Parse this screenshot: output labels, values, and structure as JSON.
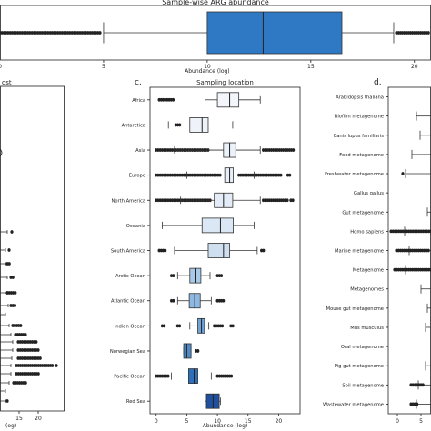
{
  "chart_data": [
    {
      "panel": "a",
      "type": "box",
      "title": "Sample-wise ARG abundance",
      "xlabel": "Abundance (log)",
      "ticks": [
        0,
        5,
        10,
        15,
        20
      ],
      "xlim": [
        0,
        20.8
      ],
      "box": {
        "whislo": 5,
        "q1": 10,
        "med": 12.7,
        "q3": 16.5,
        "whishi": 19
      }
    },
    {
      "panel": "b",
      "type": "box",
      "title": "ost",
      "ticks": [
        15,
        20
      ],
      "tick_labels": [
        "15",
        "20"
      ],
      "xlabel": "(og)"
    },
    {
      "panel": "c",
      "type": "box",
      "title": "Sampling location",
      "letter": "c.",
      "xlabel": "Abundance (log)",
      "ticks": [
        0,
        5,
        10,
        15,
        20
      ],
      "xlim": [
        -1,
        23.5
      ],
      "categories": [
        "Africa",
        "Antarctica",
        "Asia",
        "Europe",
        "North America",
        "Oceania",
        "South America",
        "Arctic Ocean",
        "Atlantic Ocean",
        "Indian Ocean",
        "Norwegian Sea",
        "Pacific Ocean",
        "Red Sea"
      ],
      "boxes": [
        {
          "whislo": 8,
          "q1": 10,
          "med": 12,
          "q3": 13.5,
          "whishi": 17,
          "color": "#f2f6fb"
        },
        {
          "whislo": 2,
          "q1": 5.5,
          "med": 7.5,
          "q3": 8.5,
          "whishi": 12.5,
          "color": "#eef3f9"
        },
        {
          "whislo": 3,
          "q1": 11,
          "med": 12,
          "q3": 13,
          "whishi": 17,
          "color": "#ecf2f9"
        },
        {
          "whislo": 5,
          "q1": 11.2,
          "med": 12,
          "q3": 12.6,
          "whishi": 16,
          "color": "#e8eff8"
        },
        {
          "whislo": 4,
          "q1": 9.5,
          "med": 11,
          "q3": 12.5,
          "whishi": 17,
          "color": "#e4edf7"
        },
        {
          "whislo": 1,
          "q1": 7.5,
          "med": 10.5,
          "q3": 12.6,
          "whishi": 16,
          "color": "#dbe7f4"
        },
        {
          "whislo": 3,
          "q1": 8.5,
          "med": 11,
          "q3": 12,
          "whishi": 16.5,
          "color": "#cfdff0"
        },
        {
          "whislo": 3.5,
          "q1": 5.5,
          "med": 6.5,
          "q3": 7.3,
          "whishi": 8.8,
          "color": "#a9c9e8"
        },
        {
          "whislo": 3.5,
          "q1": 5.4,
          "med": 6.3,
          "q3": 7.2,
          "whishi": 9,
          "color": "#8fb8e0"
        },
        {
          "whislo": 5.5,
          "q1": 6.8,
          "med": 7.4,
          "q3": 7.9,
          "whishi": 8.6,
          "color": "#6fa2d6"
        },
        {
          "whislo": 4.5,
          "q1": 4.5,
          "med": 5,
          "q3": 5.7,
          "whishi": 5.7,
          "color": "#4f89c9"
        },
        {
          "whislo": 2.5,
          "q1": 5.3,
          "med": 6.2,
          "q3": 6.8,
          "whishi": 9,
          "color": "#2f6fba"
        },
        {
          "whislo": 8,
          "q1": 8.2,
          "med": 9.3,
          "q3": 10.3,
          "whishi": 10.5,
          "color": "#1f4f9f"
        }
      ]
    },
    {
      "panel": "d",
      "type": "box",
      "letter": "d.",
      "categories": [
        "Arabidopsis thaliana",
        "Biofilm metagenome",
        "Canis lupus familiaris",
        "Food metagenome",
        "Freshwater metagenome",
        "Gallus gallus",
        "Gut metagenome",
        "Homo sapiens",
        "Marine metagenome",
        "Metagenome",
        "Metagenomes",
        "Mouse gut metagenome",
        "Mus musculus",
        "Oral metagenome",
        "Pig gut metagenome",
        "Soil metagenome",
        "Wastewater metagenome"
      ],
      "ticks": [
        0,
        5
      ],
      "tick_labels": [
        "0",
        "5"
      ]
    }
  ]
}
